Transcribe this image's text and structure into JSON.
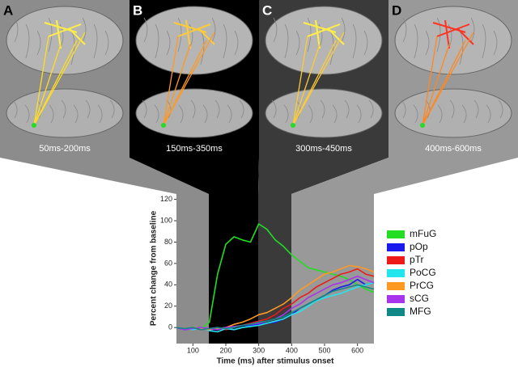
{
  "panels": [
    {
      "letter": "A",
      "window": "50ms-200ms"
    },
    {
      "letter": "B",
      "window": "150ms-350ms"
    },
    {
      "letter": "C",
      "window": "300ms-450ms"
    },
    {
      "letter": "D",
      "window": "400ms-600ms"
    }
  ],
  "chart_data": {
    "type": "line",
    "xlabel": "Time (ms) after stimulus onset",
    "ylabel": "Percent change from baseline",
    "x": [
      50,
      75,
      100,
      125,
      150,
      175,
      200,
      225,
      250,
      275,
      300,
      325,
      350,
      375,
      400,
      425,
      450,
      475,
      500,
      525,
      550,
      575,
      600,
      625,
      650
    ],
    "xlim": [
      50,
      650
    ],
    "xticks": [
      100,
      200,
      300,
      400,
      500,
      600
    ],
    "ylim": [
      -15,
      125
    ],
    "yticks": [
      0,
      20,
      40,
      60,
      80,
      100,
      120
    ],
    "series": [
      {
        "name": "mFuG",
        "color": "#22dd22",
        "values": [
          0,
          -2,
          0,
          -1,
          5,
          50,
          78,
          85,
          82,
          80,
          97,
          92,
          82,
          76,
          68,
          62,
          56,
          54,
          52,
          50,
          48,
          45,
          40,
          36,
          33
        ]
      },
      {
        "name": "pOp",
        "color": "#1a1aee",
        "values": [
          0,
          -2,
          -1,
          0,
          -3,
          -1,
          0,
          -2,
          0,
          2,
          3,
          4,
          5,
          8,
          12,
          18,
          22,
          26,
          30,
          35,
          38,
          40,
          45,
          40,
          42
        ]
      },
      {
        "name": "pTr",
        "color": "#ee1a1a",
        "values": [
          0,
          -1,
          0,
          -2,
          -1,
          0,
          -2,
          0,
          2,
          4,
          6,
          8,
          12,
          18,
          22,
          28,
          32,
          38,
          42,
          46,
          50,
          52,
          55,
          50,
          48
        ]
      },
      {
        "name": "PoCG",
        "color": "#22e6ee",
        "values": [
          0,
          -1,
          -2,
          0,
          -3,
          -4,
          -1,
          -2,
          0,
          1,
          2,
          4,
          6,
          8,
          12,
          15,
          20,
          25,
          28,
          30,
          32,
          35,
          38,
          40,
          42
        ]
      },
      {
        "name": "PrCG",
        "color": "#ff9922",
        "values": [
          0,
          -1,
          0,
          -1,
          -2,
          -1,
          0,
          3,
          5,
          8,
          12,
          14,
          18,
          22,
          28,
          35,
          40,
          45,
          50,
          52,
          55,
          58,
          57,
          55,
          52
        ]
      },
      {
        "name": "sCG",
        "color": "#aa33ee",
        "values": [
          0,
          -2,
          -1,
          0,
          -1,
          -2,
          0,
          1,
          2,
          3,
          4,
          6,
          8,
          12,
          18,
          22,
          28,
          32,
          36,
          40,
          42,
          45,
          48,
          45,
          42
        ]
      },
      {
        "name": "MFG",
        "color": "#118888",
        "values": [
          0,
          -1,
          0,
          -2,
          -1,
          0,
          -1,
          0,
          2,
          3,
          5,
          6,
          8,
          10,
          14,
          18,
          22,
          26,
          30,
          34,
          36,
          38,
          40,
          38,
          36
        ]
      }
    ]
  }
}
